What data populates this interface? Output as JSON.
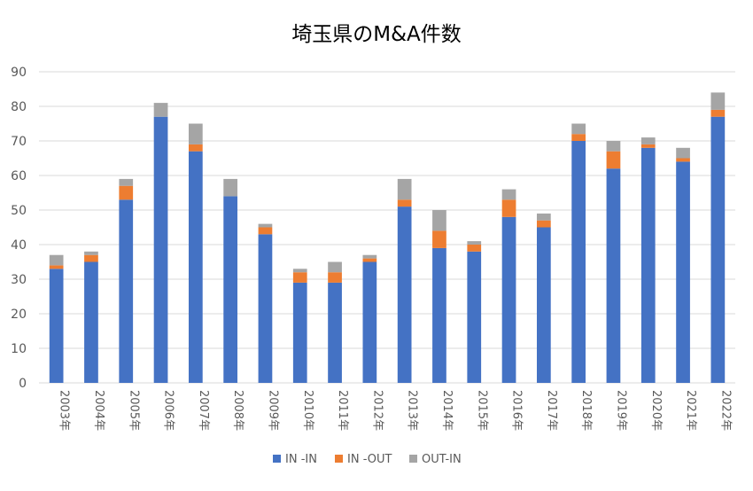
{
  "chart_data": {
    "type": "bar",
    "stacked": true,
    "title": "埼玉県のM&A件数",
    "xlabel": "",
    "ylabel": "",
    "ylim": [
      0,
      90
    ],
    "yticks": [
      0,
      10,
      20,
      30,
      40,
      50,
      60,
      70,
      80,
      90
    ],
    "grid": true,
    "legend_position": "bottom",
    "categories": [
      "2003年",
      "2004年",
      "2005年",
      "2006年",
      "2007年",
      "2008年",
      "2009年",
      "2010年",
      "2011年",
      "2012年",
      "2013年",
      "2014年",
      "2015年",
      "2016年",
      "2017年",
      "2018年",
      "2019年",
      "2020年",
      "2021年",
      "2022年"
    ],
    "series": [
      {
        "name": "IN -IN",
        "color": "#4472C4",
        "values": [
          33,
          35,
          53,
          77,
          67,
          54,
          43,
          29,
          29,
          35,
          51,
          39,
          38,
          48,
          45,
          70,
          62,
          68,
          64,
          77
        ]
      },
      {
        "name": "IN -OUT",
        "color": "#ED7D31",
        "values": [
          1,
          2,
          4,
          0,
          2,
          0,
          2,
          3,
          3,
          1,
          2,
          5,
          2,
          5,
          2,
          2,
          5,
          1,
          1,
          2
        ]
      },
      {
        "name": "OUT-IN",
        "color": "#A5A5A5",
        "values": [
          3,
          1,
          2,
          4,
          6,
          5,
          1,
          1,
          3,
          1,
          6,
          6,
          1,
          3,
          2,
          3,
          3,
          2,
          3,
          5
        ]
      }
    ],
    "axis_color": "#D9D9D9",
    "text_color": "#595959"
  }
}
